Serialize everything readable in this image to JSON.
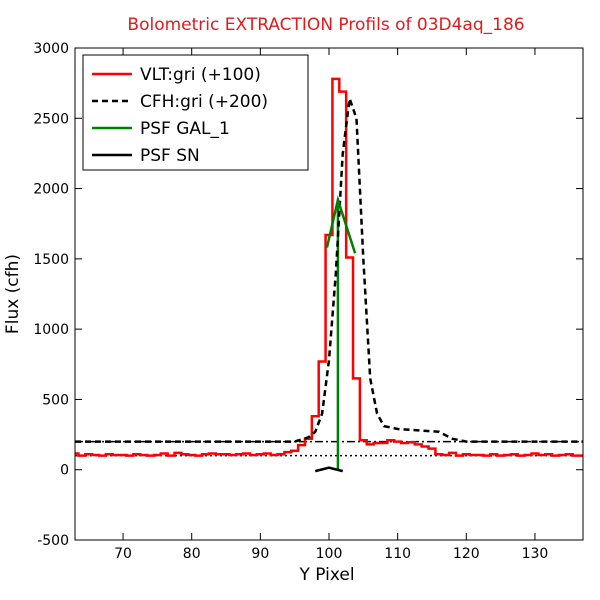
{
  "chart_data": {
    "type": "line",
    "title": "Bolometric EXTRACTION Profils of 03D4aq_186",
    "title_color": "#e31a1c",
    "xlabel": "Y Pixel",
    "ylabel": "Flux (cfh)",
    "xlim": [
      63,
      137
    ],
    "ylim": [
      -500,
      3000
    ],
    "x_ticks": [
      70,
      80,
      90,
      100,
      110,
      120,
      130
    ],
    "y_ticks": [
      -500,
      0,
      500,
      1000,
      1500,
      2000,
      2500,
      3000
    ],
    "legend_position": "top-left",
    "grid": false,
    "series": [
      {
        "name": "VLT:gri (+100)",
        "color": "#ff0000",
        "style": "steps",
        "x": [
          63,
          64,
          65,
          66,
          67,
          68,
          69,
          70,
          71,
          72,
          73,
          74,
          75,
          76,
          77,
          78,
          79,
          80,
          81,
          82,
          83,
          84,
          85,
          86,
          87,
          88,
          89,
          90,
          91,
          92,
          93,
          94,
          95,
          96,
          97,
          98,
          99,
          100,
          101,
          102,
          103,
          104,
          105,
          106,
          107,
          108,
          109,
          110,
          111,
          112,
          113,
          114,
          115,
          116,
          117,
          118,
          119,
          120,
          121,
          122,
          123,
          124,
          125,
          126,
          127,
          128,
          129,
          130,
          131,
          132,
          133,
          134,
          135,
          136,
          137
        ],
        "y": [
          115,
          100,
          110,
          105,
          100,
          110,
          105,
          105,
          100,
          110,
          105,
          100,
          105,
          115,
          100,
          120,
          110,
          105,
          100,
          110,
          115,
          110,
          110,
          105,
          110,
          115,
          105,
          110,
          115,
          105,
          110,
          125,
          135,
          175,
          220,
          380,
          770,
          1670,
          2780,
          2690,
          1510,
          650,
          210,
          180,
          190,
          190,
          210,
          200,
          190,
          195,
          180,
          165,
          150,
          110,
          105,
          120,
          100,
          110,
          105,
          105,
          100,
          110,
          100,
          105,
          110,
          100,
          105,
          115,
          105,
          110,
          100,
          105,
          110,
          100,
          100
        ]
      },
      {
        "name": "CFH:gri (+200)",
        "color": "#000000",
        "style": "dashed",
        "x": [
          63,
          95,
          97,
          98,
          99,
          100,
          101,
          102,
          103,
          104,
          105,
          106,
          107,
          108,
          110,
          113,
          116,
          118,
          120,
          125,
          130,
          137
        ],
        "y": [
          200,
          200,
          230,
          270,
          400,
          780,
          1400,
          2250,
          2640,
          2500,
          1500,
          650,
          400,
          310,
          290,
          280,
          270,
          220,
          200,
          200,
          200,
          200
        ]
      },
      {
        "name": "PSF GAL_1",
        "color": "#008000",
        "style": "solid",
        "x": [
          99.7,
          101.3,
          103.8
        ],
        "y": [
          1580,
          1920,
          1540
        ]
      },
      {
        "name": "PSF SN",
        "color": "#000000",
        "style": "solid",
        "x": [
          98,
          100,
          102
        ],
        "y": [
          -10,
          15,
          -10
        ]
      }
    ],
    "reference_lines": [
      {
        "y": 200,
        "style": "dashdot",
        "color": "#000000"
      },
      {
        "y": 100,
        "style": "dotted",
        "color": "#000000"
      },
      {
        "x": 101.3,
        "y_range": [
          0,
          1900
        ],
        "style": "solid",
        "color": "#008000"
      }
    ]
  }
}
